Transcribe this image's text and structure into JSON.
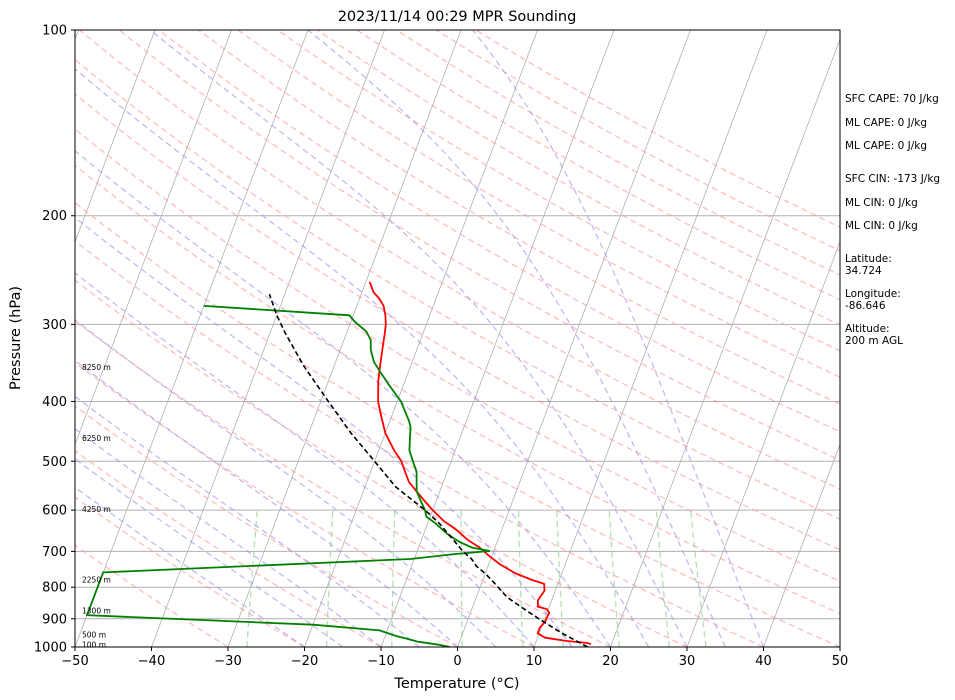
{
  "chart_data": {
    "type": "line",
    "title": "2023/11/14 00:29 MPR Sounding",
    "xlabel": "Temperature (°C)",
    "ylabel": "Pressure (hPa)",
    "xlim": [
      -50,
      50
    ],
    "ylim": [
      1000,
      100
    ],
    "y_scale": "log",
    "x_ticks": [
      "−50",
      "−40",
      "−30",
      "−20",
      "−10",
      "0",
      "10",
      "20",
      "30",
      "40",
      "50"
    ],
    "y_ticks": [
      "100",
      "200",
      "300",
      "400",
      "500",
      "600",
      "700",
      "800",
      "900",
      "1000"
    ],
    "grid": true,
    "series": [
      {
        "type": "temperature",
        "color": "#ff0000",
        "points": [
          [
            17.3,
            990
          ],
          [
            16.8,
            985
          ],
          [
            14,
            978
          ],
          [
            11,
            966
          ],
          [
            9.8,
            950
          ],
          [
            9.8,
            930
          ],
          [
            10.2,
            910
          ],
          [
            10.3,
            880
          ],
          [
            9.8,
            868
          ],
          [
            8.5,
            860
          ],
          [
            8.2,
            840
          ],
          [
            8.6,
            810
          ],
          [
            8.2,
            790
          ],
          [
            6.5,
            779
          ],
          [
            4,
            760
          ],
          [
            1.5,
            735
          ],
          [
            -0.5,
            710
          ],
          [
            -2,
            690
          ],
          [
            -4,
            670
          ],
          [
            -6,
            645
          ],
          [
            -8,
            625
          ],
          [
            -10,
            600
          ],
          [
            -11.5,
            580
          ],
          [
            -13,
            560
          ],
          [
            -14.5,
            540
          ],
          [
            -15.5,
            520
          ],
          [
            -16.5,
            500
          ],
          [
            -18,
            480
          ],
          [
            -20,
            450
          ],
          [
            -21.5,
            420
          ],
          [
            -22.5,
            400
          ],
          [
            -23.5,
            370
          ],
          [
            -24,
            350
          ],
          [
            -24.5,
            330
          ],
          [
            -25,
            310
          ],
          [
            -25.3,
            300
          ],
          [
            -25.8,
            290
          ],
          [
            -26.5,
            280
          ],
          [
            -27.5,
            272
          ],
          [
            -28.5,
            266
          ],
          [
            -29,
            261
          ],
          [
            -29.5,
            256
          ]
        ]
      },
      {
        "type": "dewpoint",
        "color": "#008000",
        "points": [
          [
            -1,
            1000
          ],
          [
            -2.5,
            992
          ],
          [
            -4,
            986
          ],
          [
            -5.5,
            980
          ],
          [
            -7,
            970
          ],
          [
            -8.5,
            960
          ],
          [
            -11,
            940
          ],
          [
            -20,
            920
          ],
          [
            -50,
            888
          ],
          [
            -50,
            757
          ],
          [
            -10.5,
            720
          ],
          [
            -5,
            707
          ],
          [
            -0.5,
            699
          ],
          [
            -3,
            690
          ],
          [
            -5,
            675
          ],
          [
            -7,
            655
          ],
          [
            -9,
            630
          ],
          [
            -10.5,
            615
          ],
          [
            -11,
            600
          ],
          [
            -12,
            580
          ],
          [
            -13,
            560
          ],
          [
            -13.5,
            540
          ],
          [
            -14,
            520
          ],
          [
            -15,
            500
          ],
          [
            -16,
            480
          ],
          [
            -16.5,
            460
          ],
          [
            -17,
            440
          ],
          [
            -17.5,
            430
          ],
          [
            -18.5,
            415
          ],
          [
            -19.5,
            400
          ],
          [
            -20.5,
            390
          ],
          [
            -22,
            375
          ],
          [
            -23.5,
            360
          ],
          [
            -25,
            345
          ],
          [
            -26,
            330
          ],
          [
            -26.5,
            318
          ],
          [
            -27.5,
            308
          ],
          [
            -29.5,
            297
          ],
          [
            -30.5,
            290
          ],
          [
            -50,
            280
          ]
        ]
      },
      {
        "type": "parcel",
        "color": "#000000",
        "points": [
          [
            17,
            1000
          ],
          [
            13,
            950
          ],
          [
            10,
            910
          ],
          [
            7,
            870
          ],
          [
            4,
            830
          ],
          [
            1.5,
            785
          ],
          [
            0,
            760
          ],
          [
            -1.5,
            740
          ],
          [
            -2.5,
            720
          ],
          [
            -4,
            700
          ],
          [
            -6.5,
            660
          ],
          [
            -8.5,
            630
          ],
          [
            -11,
            600
          ],
          [
            -16,
            550
          ],
          [
            -20,
            500
          ],
          [
            -24.5,
            450
          ],
          [
            -29,
            400
          ],
          [
            -34,
            350
          ],
          [
            -38,
            310
          ],
          [
            -40,
            290
          ],
          [
            -42,
            268
          ]
        ]
      }
    ],
    "annotations": [
      "SFC CAPE: 70 J/kg",
      "ML CAPE: 0 J/kg",
      "ML CAPE: 0 J/kg",
      "SFC CIN: -173 J/kg",
      "ML CIN: 0 J/kg",
      "ML CIN: 0 J/kg"
    ],
    "location": {
      "latitude_label": "Latitude:",
      "latitude": "34.724",
      "longitude_label": "Longitude:",
      "longitude": "-86.646",
      "altitude_label": "Altitude:",
      "altitude": "200 m AGL"
    },
    "height_labels": [
      {
        "text": "100 m",
        "p": 990
      },
      {
        "text": "500 m",
        "p": 955
      },
      {
        "text": "1300 m",
        "p": 872
      },
      {
        "text": "2250 m",
        "p": 778
      },
      {
        "text": "4250 m",
        "p": 598
      },
      {
        "text": "6250 m",
        "p": 458
      },
      {
        "text": "8250 m",
        "p": 352
      }
    ]
  }
}
